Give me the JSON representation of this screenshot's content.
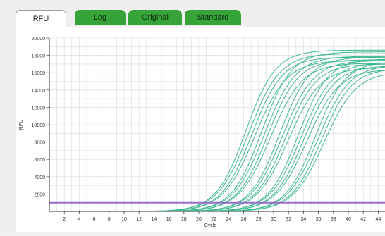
{
  "tabs": [
    {
      "label": "RFU",
      "active": true
    },
    {
      "label": "Log",
      "active": false
    },
    {
      "label": "Original",
      "active": false
    },
    {
      "label": "Standard",
      "active": false
    }
  ],
  "colors": {
    "active_tab": "#ffffff",
    "inactive_tab": "#37a43a",
    "curve": "#3db98e",
    "threshold": "#9a6bd0",
    "grid": "#d9d9d9"
  },
  "chart_data": {
    "type": "line",
    "xlabel": "Cycle",
    "ylabel": "RFU",
    "xlim": [
      0,
      45
    ],
    "ylim": [
      0,
      20000
    ],
    "x_ticks": [
      2,
      4,
      6,
      8,
      10,
      12,
      14,
      16,
      18,
      20,
      22,
      24,
      26,
      28,
      30,
      32,
      34,
      36,
      38,
      40,
      42,
      44
    ],
    "y_ticks": [
      2000,
      4000,
      6000,
      8000,
      10000,
      12000,
      14000,
      16000,
      18000,
      20000
    ],
    "grid": true,
    "threshold": 1000,
    "curves": [
      {
        "midpoint": 26.3,
        "plateau": 18600,
        "slope": 0.5
      },
      {
        "midpoint": 26.7,
        "plateau": 18200,
        "slope": 0.48
      },
      {
        "midpoint": 27.1,
        "plateau": 17800,
        "slope": 0.49
      },
      {
        "midpoint": 27.5,
        "plateau": 17400,
        "slope": 0.47
      },
      {
        "midpoint": 28.4,
        "plateau": 18400,
        "slope": 0.5
      },
      {
        "midpoint": 28.8,
        "plateau": 17900,
        "slope": 0.48
      },
      {
        "midpoint": 29.2,
        "plateau": 17500,
        "slope": 0.49
      },
      {
        "midpoint": 29.6,
        "plateau": 17100,
        "slope": 0.47
      },
      {
        "midpoint": 30.8,
        "plateau": 17800,
        "slope": 0.5
      },
      {
        "midpoint": 31.2,
        "plateau": 17400,
        "slope": 0.48
      },
      {
        "midpoint": 31.6,
        "plateau": 17000,
        "slope": 0.49
      },
      {
        "midpoint": 32.0,
        "plateau": 16600,
        "slope": 0.47
      },
      {
        "midpoint": 33.3,
        "plateau": 17600,
        "slope": 0.5
      },
      {
        "midpoint": 33.7,
        "plateau": 17200,
        "slope": 0.48
      },
      {
        "midpoint": 34.1,
        "plateau": 16800,
        "slope": 0.49
      },
      {
        "midpoint": 34.5,
        "plateau": 16400,
        "slope": 0.47
      },
      {
        "midpoint": 35.6,
        "plateau": 17300,
        "slope": 0.5
      },
      {
        "midpoint": 36.0,
        "plateau": 16900,
        "slope": 0.48
      },
      {
        "midpoint": 36.4,
        "plateau": 16500,
        "slope": 0.49
      },
      {
        "midpoint": 36.8,
        "plateau": 16100,
        "slope": 0.47
      }
    ]
  }
}
